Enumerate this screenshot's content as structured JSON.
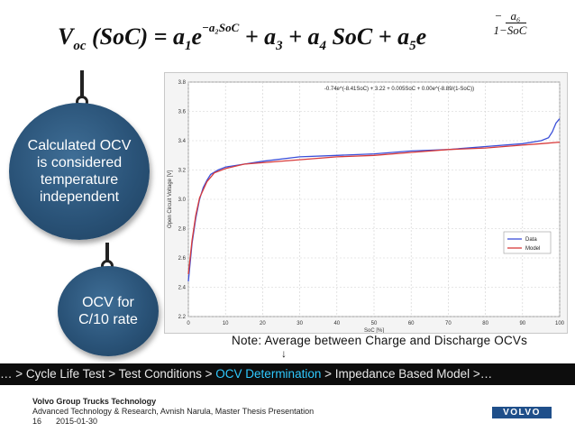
{
  "equation": {
    "lhs": "V",
    "lhs_sub": "oc",
    "lhs_arg": "(SoC) =",
    "term1": "a",
    "term1_sub": "1",
    "term1_e": "e",
    "term1_exp": "−a₂SoC",
    "term2": " + a",
    "term2_sub": "3",
    "term3": " + a",
    "term3_sub": "4",
    "term3_rest": "SoC + a",
    "term4_sub": "5",
    "term4_e": "e",
    "frac_num": "a₆",
    "frac_den": "1−SoC",
    "frac_sign": "−"
  },
  "bubbles": [
    {
      "text": "Calculated OCV is considered temperature independent"
    },
    {
      "text": "OCV for C/10 rate"
    }
  ],
  "note": "Note: Average between Charge and Discharge OCVs",
  "arrow": "↓",
  "breadcrumb": {
    "prefix": "… > ",
    "items": [
      "Cycle Life Test",
      "Test Conditions",
      "OCV Determination",
      "Impedance Based Model"
    ],
    "separator": " > ",
    "suffix": " >…",
    "active_index": 2
  },
  "footer": {
    "org": "Volvo Group Trucks Technology",
    "line2": "Advanced Technology & Research, Avnish Narula, Master Thesis Presentation",
    "page": "16",
    "date": "2015-01-30"
  },
  "logo": "VOLVO",
  "chart_data": {
    "type": "line",
    "title": "-0.74e^(-8.41SoC) + 3.22 + 0.005SoC + 0.00e^(-8.89/(1-SoC))",
    "xlabel": "SoC [%]",
    "ylabel": "Open Circuit Voltage [V]",
    "xlim": [
      0,
      100
    ],
    "ylim": [
      2.2,
      3.8
    ],
    "xticks": [
      0,
      10,
      20,
      30,
      40,
      50,
      60,
      70,
      80,
      90,
      100
    ],
    "yticks": [
      2.2,
      2.4,
      2.6,
      2.8,
      3.0,
      3.2,
      3.4,
      3.6,
      3.8
    ],
    "grid": true,
    "legend": "right",
    "series": [
      {
        "name": "Data",
        "color": "#3b4fd8",
        "x": [
          0,
          1,
          2,
          3,
          4,
          5,
          6,
          8,
          10,
          15,
          20,
          30,
          40,
          50,
          60,
          70,
          80,
          90,
          95,
          97,
          98,
          99,
          100
        ],
        "y": [
          2.44,
          2.7,
          2.87,
          3.0,
          3.08,
          3.13,
          3.17,
          3.2,
          3.22,
          3.24,
          3.26,
          3.29,
          3.3,
          3.31,
          3.33,
          3.34,
          3.36,
          3.38,
          3.4,
          3.42,
          3.46,
          3.52,
          3.55
        ]
      },
      {
        "name": "Model",
        "color": "#d83b3b",
        "x": [
          0,
          1,
          2,
          3,
          5,
          7,
          10,
          15,
          20,
          30,
          40,
          50,
          60,
          70,
          80,
          90,
          95,
          100
        ],
        "y": [
          2.49,
          2.72,
          2.89,
          3.01,
          3.12,
          3.18,
          3.21,
          3.24,
          3.25,
          3.27,
          3.29,
          3.3,
          3.32,
          3.34,
          3.35,
          3.37,
          3.38,
          3.39
        ]
      }
    ]
  }
}
